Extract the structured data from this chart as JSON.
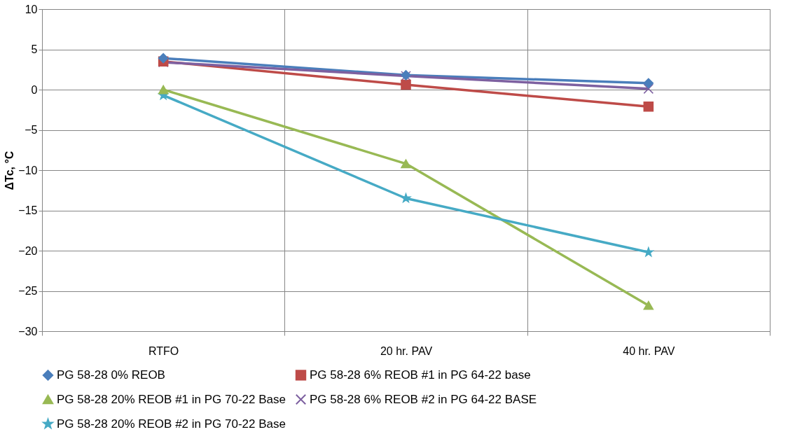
{
  "chart_data": {
    "type": "line",
    "ylabel": "ΔTc, °C",
    "categories": [
      "RTFO",
      "20 hr. PAV",
      "40 hr. PAV"
    ],
    "ylim": [
      -30,
      10
    ],
    "yticks": [
      -30,
      -25,
      -20,
      -15,
      -10,
      -5,
      0,
      5,
      10
    ],
    "grid": true,
    "legend": "bottom",
    "series": [
      {
        "name": "PG 58-28 0% REOB",
        "color": "#4a7ebb",
        "marker": "diamond",
        "values": [
          3.9,
          1.8,
          0.8
        ]
      },
      {
        "name": "PG 58-28 6% REOB #1 in PG 64-22 base",
        "color": "#be4b48",
        "marker": "square",
        "values": [
          3.5,
          0.6,
          -2.1
        ]
      },
      {
        "name": "PG 58-28 20% REOB #1 in PG 70-22 Base",
        "color": "#98b954",
        "marker": "triangle",
        "values": [
          0,
          -9.2,
          -26.8
        ]
      },
      {
        "name": "PG 58-28 6% REOB #2 in PG 64-22 BASE",
        "color": "#7d60a0",
        "marker": "cross",
        "values": [
          3.4,
          1.7,
          0.1
        ]
      },
      {
        "name": "PG 58-28 20% REOB #2 in PG 70-22 Base",
        "color": "#46aac5",
        "marker": "star",
        "values": [
          -0.7,
          -13.5,
          -20.2
        ]
      }
    ]
  }
}
